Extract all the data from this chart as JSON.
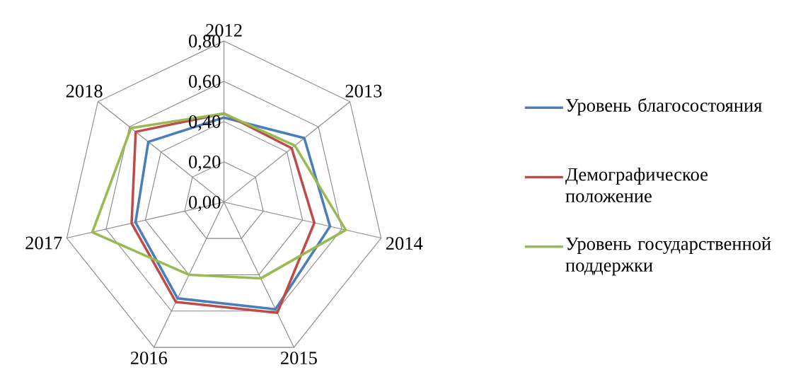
{
  "chart_data": {
    "type": "radar",
    "categories": [
      "2012",
      "2013",
      "2014",
      "2015",
      "2016",
      "2017",
      "2018"
    ],
    "series": [
      {
        "name": "Уровень благосостояния",
        "color": "#4a7ebb",
        "values": [
          0.42,
          0.51,
          0.54,
          0.59,
          0.53,
          0.45,
          0.48
        ]
      },
      {
        "name": "Демографическое положение",
        "color": "#be4b48",
        "values": [
          0.44,
          0.43,
          0.46,
          0.61,
          0.55,
          0.47,
          0.56
        ]
      },
      {
        "name": "Уровень государственной поддержки",
        "color": "#98b954",
        "values": [
          0.44,
          0.45,
          0.62,
          0.42,
          0.4,
          0.67,
          0.59
        ]
      }
    ],
    "ylim": [
      0,
      0.8
    ],
    "yticks": [
      {
        "value": 0,
        "label": "0,00"
      },
      {
        "value": 0.2,
        "label": "0,20"
      },
      {
        "value": 0.4,
        "label": "0,40"
      },
      {
        "value": 0.6,
        "label": "0,60"
      },
      {
        "value": 0.8,
        "label": "0,80"
      }
    ],
    "grid": true,
    "legend": "right",
    "marker": "none"
  }
}
